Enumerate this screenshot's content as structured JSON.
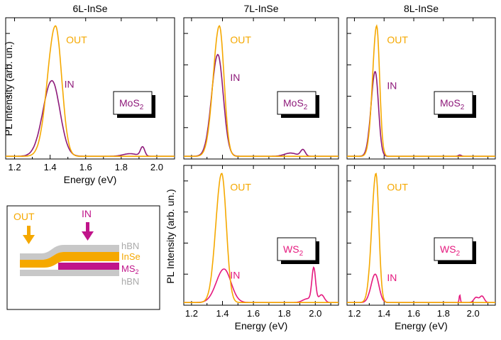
{
  "colors": {
    "out": "#f5a800",
    "in_mos2": "#8e1a7a",
    "in_ws2": "#e5197e",
    "hbn": "#c8c8c8",
    "frame": "#000000"
  },
  "figure": {
    "ylabel": "PL Intensity (arb. un.)",
    "xlabel": "Energy (eV)"
  },
  "schematic": {
    "out_label": "OUT",
    "in_label": "IN",
    "layers": [
      {
        "name": "hBN"
      },
      {
        "name": "InSe"
      },
      {
        "name": "MS",
        "sub": "2"
      },
      {
        "name": "hBN"
      }
    ]
  },
  "chart_data": [
    {
      "panel": "top-left",
      "type": "line",
      "title": "6L-InSe",
      "xlabel": "Energy (eV)",
      "ylabel": "PL Intensity (arb. un.)",
      "xlim": [
        1.15,
        2.1
      ],
      "ylim": [
        0,
        1.05
      ],
      "xticks": [
        1.2,
        1.4,
        1.6,
        1.8,
        2.0
      ],
      "xticklabels": [
        "1.2",
        "1.4",
        "1.6",
        "1.8",
        "2.0"
      ],
      "material_box": {
        "base": "MoS",
        "sub": "2"
      },
      "series": [
        {
          "name": "OUT",
          "color": "#f5a800",
          "peak_x": 1.43,
          "peak_y": 1.0,
          "width_left": 0.045,
          "width_right": 0.035,
          "extra_peaks": []
        },
        {
          "name": "IN",
          "color": "#8e1a7a",
          "peak_x": 1.41,
          "peak_y": 0.58,
          "width_left": 0.05,
          "width_right": 0.045,
          "extra_peaks": [
            {
              "x": 1.85,
              "y": 0.02,
              "w": 0.04
            },
            {
              "x": 1.92,
              "y": 0.07,
              "w": 0.012
            }
          ]
        }
      ],
      "labels": [
        {
          "text": "OUT",
          "x": 1.49,
          "y": 0.86,
          "color": "#f5a800"
        },
        {
          "text": "IN",
          "x": 1.48,
          "y": 0.53,
          "color": "#8e1a7a"
        }
      ]
    },
    {
      "panel": "top-middle",
      "type": "line",
      "title": "7L-InSe",
      "xlim": [
        1.15,
        2.15
      ],
      "ylim": [
        0,
        1.05
      ],
      "xticks": [
        1.2,
        1.4,
        1.6,
        1.8,
        2.0
      ],
      "xticklabels": [],
      "material_box": {
        "base": "MoS",
        "sub": "2"
      },
      "series": [
        {
          "name": "OUT",
          "color": "#f5a800",
          "peak_x": 1.38,
          "peak_y": 1.0,
          "width_left": 0.04,
          "width_right": 0.03,
          "extra_peaks": []
        },
        {
          "name": "IN",
          "color": "#8e1a7a",
          "peak_x": 1.37,
          "peak_y": 0.78,
          "width_left": 0.04,
          "width_right": 0.035,
          "extra_peaks": [
            {
              "x": 1.84,
              "y": 0.025,
              "w": 0.04
            },
            {
              "x": 1.92,
              "y": 0.05,
              "w": 0.015
            }
          ]
        }
      ],
      "labels": [
        {
          "text": "OUT",
          "x": 1.45,
          "y": 0.86,
          "color": "#f5a800"
        },
        {
          "text": "IN",
          "x": 1.45,
          "y": 0.58,
          "color": "#8e1a7a"
        }
      ]
    },
    {
      "panel": "top-right",
      "type": "line",
      "title": "8L-InSe",
      "xlim": [
        1.15,
        2.15
      ],
      "ylim": [
        0,
        1.05
      ],
      "xticks": [
        1.2,
        1.4,
        1.6,
        1.8,
        2.0
      ],
      "xticklabels": [],
      "material_box": {
        "base": "MoS",
        "sub": "2"
      },
      "series": [
        {
          "name": "OUT",
          "color": "#f5a800",
          "peak_x": 1.35,
          "peak_y": 1.0,
          "width_left": 0.028,
          "width_right": 0.02,
          "extra_peaks": []
        },
        {
          "name": "IN",
          "color": "#8e1a7a",
          "peak_x": 1.34,
          "peak_y": 0.65,
          "width_left": 0.028,
          "width_right": 0.022,
          "extra_peaks": [
            {
              "x": 1.91,
              "y": 0.01,
              "w": 0.01
            }
          ]
        }
      ],
      "labels": [
        {
          "text": "OUT",
          "x": 1.42,
          "y": 0.86,
          "color": "#f5a800"
        },
        {
          "text": "IN",
          "x": 1.42,
          "y": 0.52,
          "color": "#8e1a7a"
        }
      ]
    },
    {
      "panel": "bottom-middle",
      "type": "line",
      "title": "",
      "xlabel": "Energy (eV)",
      "ylabel": "PL Intensity (arb. un.)",
      "xlim": [
        1.15,
        2.15
      ],
      "ylim": [
        0,
        1.05
      ],
      "xticks": [
        1.2,
        1.4,
        1.6,
        1.8,
        2.0
      ],
      "xticklabels": [
        "1.2",
        "1.4",
        "1.6",
        "1.8",
        "2.0"
      ],
      "material_box": {
        "base": "WS",
        "sub": "2"
      },
      "series": [
        {
          "name": "OUT",
          "color": "#f5a800",
          "peak_x": 1.395,
          "peak_y": 1.0,
          "width_left": 0.038,
          "width_right": 0.03,
          "extra_peaks": []
        },
        {
          "name": "IN",
          "color": "#e5197e",
          "peak_x": 1.41,
          "peak_y": 0.26,
          "width_left": 0.05,
          "width_right": 0.045,
          "extra_peaks": [
            {
              "x": 1.99,
              "y": 0.26,
              "w": 0.012
            },
            {
              "x": 2.04,
              "y": 0.06,
              "w": 0.018
            },
            {
              "x": 1.95,
              "y": 0.03,
              "w": 0.03
            }
          ]
        }
      ],
      "labels": [
        {
          "text": "OUT",
          "x": 1.45,
          "y": 0.86,
          "color": "#f5a800"
        },
        {
          "text": "IN",
          "x": 1.45,
          "y": 0.2,
          "color": "#e5197e"
        }
      ]
    },
    {
      "panel": "bottom-right",
      "type": "line",
      "title": "",
      "xlabel": "Energy (eV)",
      "xlim": [
        1.15,
        2.15
      ],
      "ylim": [
        0,
        1.05
      ],
      "xticks": [
        1.2,
        1.4,
        1.6,
        1.8,
        2.0
      ],
      "xticklabels": [
        "1.2",
        "1.4",
        "1.6",
        "1.8",
        "2.0"
      ],
      "material_box": {
        "base": "WS",
        "sub": "2"
      },
      "series": [
        {
          "name": "OUT",
          "color": "#f5a800",
          "peak_x": 1.345,
          "peak_y": 1.0,
          "width_left": 0.028,
          "width_right": 0.02,
          "extra_peaks": []
        },
        {
          "name": "IN",
          "color": "#e5197e",
          "peak_x": 1.34,
          "peak_y": 0.22,
          "width_left": 0.028,
          "width_right": 0.025,
          "extra_peaks": [
            {
              "x": 1.91,
              "y": 0.06,
              "w": 0.004
            },
            {
              "x": 2.02,
              "y": 0.04,
              "w": 0.015
            },
            {
              "x": 2.06,
              "y": 0.05,
              "w": 0.015
            }
          ]
        }
      ],
      "labels": [
        {
          "text": "OUT",
          "x": 1.42,
          "y": 0.86,
          "color": "#f5a800"
        },
        {
          "text": "IN",
          "x": 1.42,
          "y": 0.18,
          "color": "#e5197e"
        }
      ]
    }
  ]
}
